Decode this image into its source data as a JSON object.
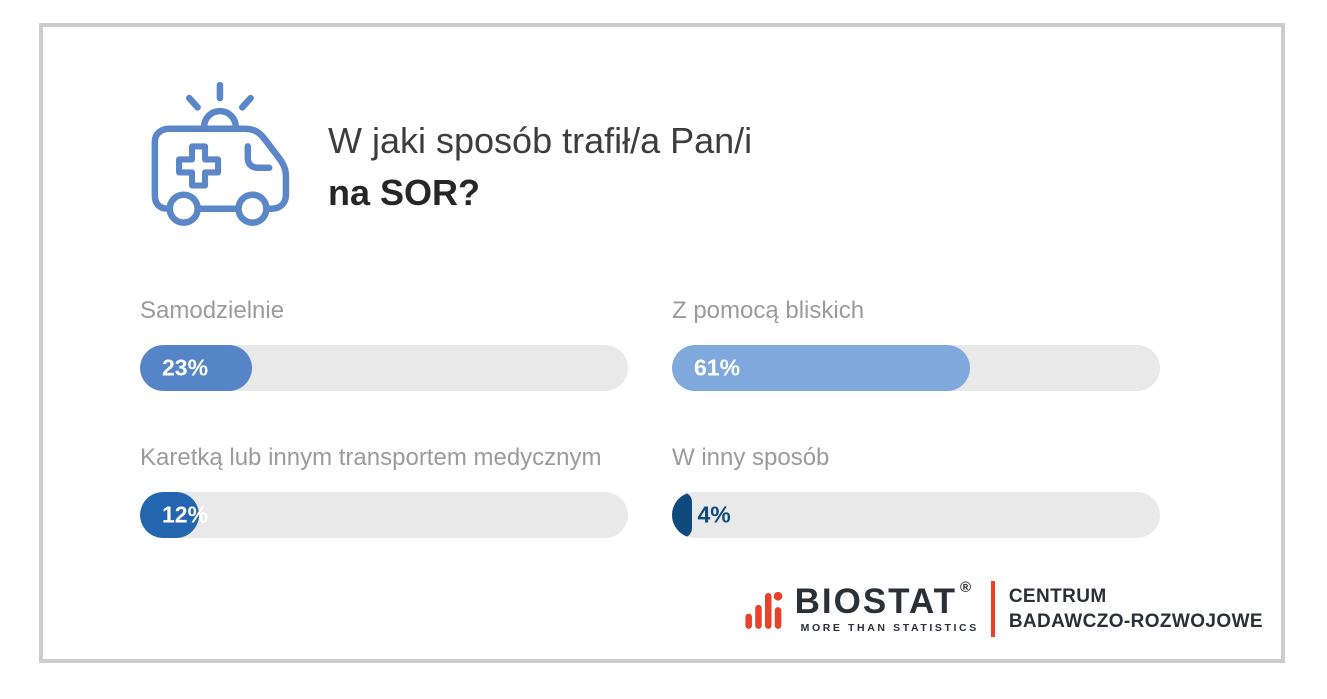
{
  "header": {
    "title_line1": "W jaki sposób trafił/a Pan/i",
    "title_line2": "na SOR?",
    "icon": "ambulance-icon",
    "icon_color": "#5b87c8"
  },
  "chart_data": {
    "type": "bar",
    "orientation": "horizontal",
    "title": "W jaki sposób trafił/a Pan/i na SOR?",
    "unit": "%",
    "xlim": [
      0,
      100
    ],
    "grid": false,
    "legend": false,
    "track_color": "#e9e9e9",
    "label_color": "#9b9b9b",
    "items": [
      {
        "label": "Samodzielnie",
        "value": 23,
        "value_label": "23%",
        "fill_color": "#5585c6",
        "value_inside": true
      },
      {
        "label": "Z pomocą bliskich",
        "value": 61,
        "value_label": "61%",
        "fill_color": "#7fa8dc",
        "value_inside": true
      },
      {
        "label": "Karetką lub innym transportem medycznym",
        "value": 12,
        "value_label": "12%",
        "fill_color": "#2365ae",
        "value_inside": true
      },
      {
        "label": "W inny sposób",
        "value": 4,
        "value_label": "4%",
        "fill_color": "#0f4a7e",
        "value_inside": false
      }
    ]
  },
  "footer": {
    "brand": "BIOSTAT",
    "registered": "®",
    "tagline": "MORE THAN STATISTICS",
    "division_line1": "CENTRUM",
    "division_line2": "BADAWCZO-ROZWOJOWE",
    "brand_icon": "bar-chart-icon",
    "brand_color": "#2b2f36",
    "accent_color": "#e8412c"
  },
  "colors": {
    "card_border": "#cdcdcd",
    "background": "#ffffff",
    "title_primary": "#3d3d3d",
    "title_bold": "#262626"
  }
}
